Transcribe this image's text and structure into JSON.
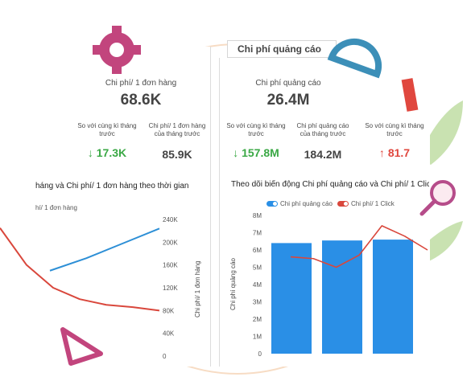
{
  "left_panel": {
    "kpi_label": "Chi phí/ 1 đơn hàng",
    "kpi_value": "68.6K",
    "compare_same_period_label": "So với cùng kì tháng trước",
    "compare_same_period_value": "17.3K",
    "compare_same_period_trend": "down",
    "prev_month_label": "Chi phí/ 1 đơn hàng của tháng trước",
    "prev_month_value": "85.9K",
    "chart_title": "háng và Chi phí/ 1 đơn hàng theo thời gian",
    "legend_fragment": "hí/ 1 đơn hàng",
    "right_axis_label": "Chi phí/ 1 đơn hàng"
  },
  "right_panel": {
    "section_title": "Chi phí quảng cáo",
    "kpi_label": "Chi phí quảng cáo",
    "kpi_value": "26.4M",
    "compare_same_period_label": "So với cùng kì tháng trước",
    "compare_same_period_value": "157.8M",
    "compare_same_period_trend": "down",
    "prev_month_label": "Chi phí quảng cáo của tháng trước",
    "prev_month_value": "184.2M",
    "compare_same_period_2_label": "So với cùng kì tháng trước",
    "compare_same_period_2_value": "81.7",
    "compare_same_period_2_trend": "up",
    "chart_title": "Theo dõi biến động Chi phí quảng cáo và Chi phí/ 1 Clic",
    "legend_ads_cost": "Chi phí quảng cáo",
    "legend_cost_per_click": "Chi phí/ 1 Click",
    "y_axis_label": "Chi phí quảng cáo"
  },
  "icons": {
    "down": "↓",
    "up": "↑"
  },
  "colors": {
    "green": "#3aa845",
    "red": "#e0473e",
    "bar_blue": "#2a8fe6",
    "line_blue": "#2d8fd6",
    "line_red": "#d9473c"
  },
  "chart_data": [
    {
      "type": "line",
      "title": "háng và Chi phí/ 1 đơn hàng theo thời gian",
      "y_ticks": [
        "0",
        "40K",
        "80K",
        "120K",
        "160K",
        "200K",
        "240K"
      ],
      "ylim": [
        0,
        240000
      ],
      "ylabel": "Chi phí/ 1 đơn hàng",
      "series": [
        {
          "values": [
            150000,
            172000,
            198000,
            224000
          ]
        },
        {
          "values": [
            225000,
            160000,
            120000,
            100000,
            90000,
            86000,
            80000
          ]
        }
      ]
    },
    {
      "type": "bar",
      "title": "Theo dõi biến động Chi phí quảng cáo và Chi phí/ 1 Clic",
      "y_ticks": [
        "0",
        "1M",
        "2M",
        "3M",
        "4M",
        "5M",
        "6M",
        "7M",
        "8M"
      ],
      "ylim": [
        0,
        8000000
      ],
      "ylabel": "Chi phí quảng cáo",
      "series": [
        {
          "name": "Chi phí quảng cáo",
          "values": [
            6400000,
            6550000,
            6600000
          ]
        },
        {
          "name": "Chi phí/ 1 Click",
          "values": [
            5600000,
            5500000,
            5000000,
            5700000,
            7400000,
            6800000,
            6000000
          ]
        }
      ]
    }
  ]
}
